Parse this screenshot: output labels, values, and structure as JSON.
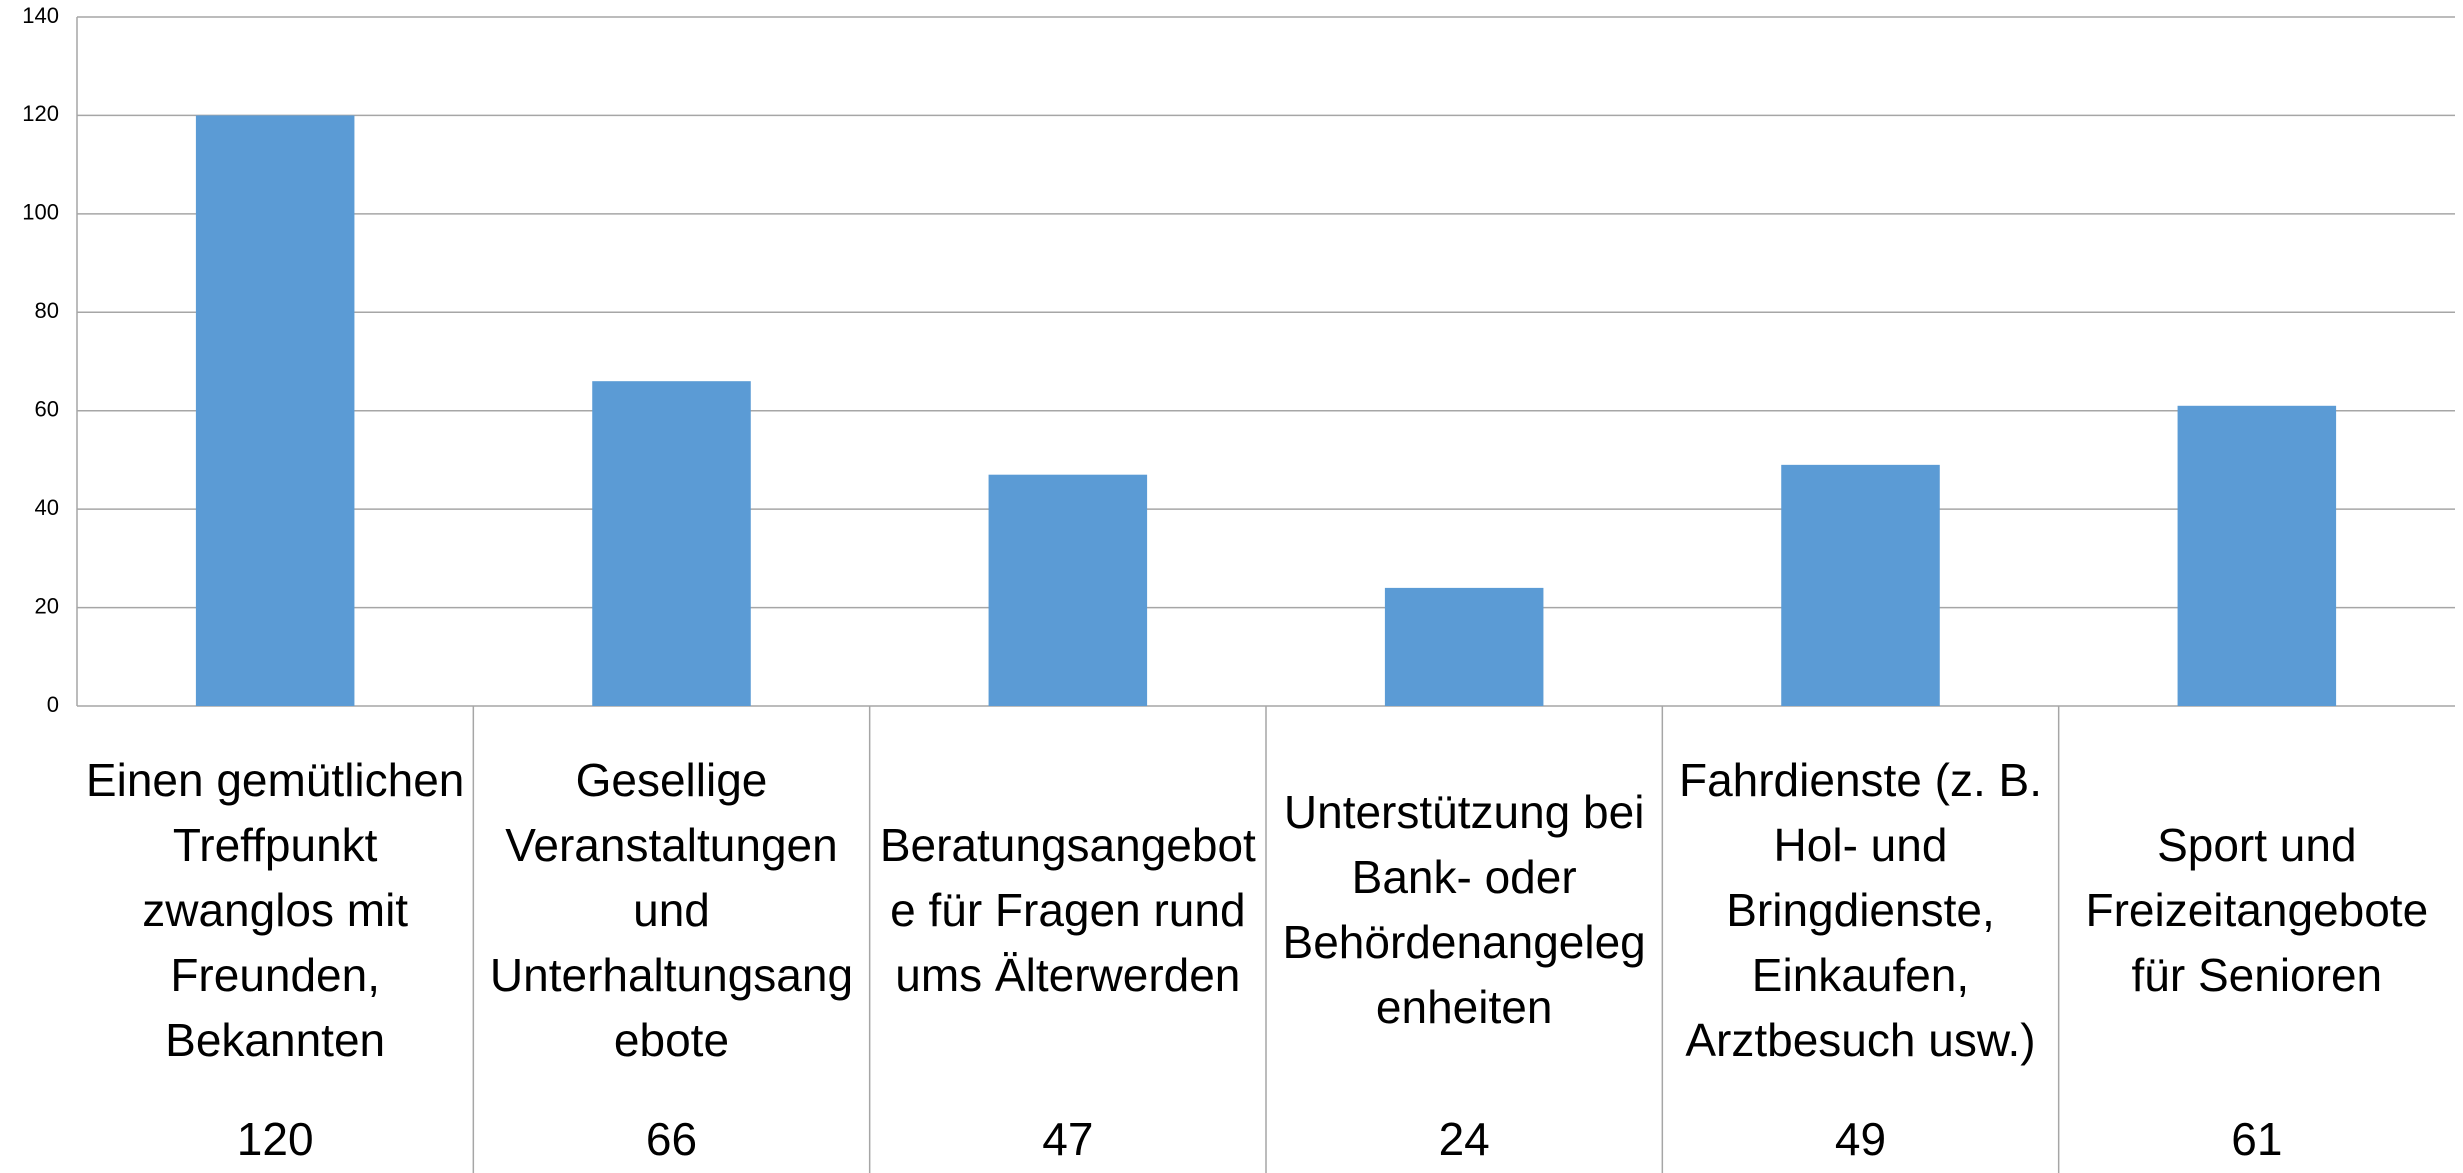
{
  "chart_data": {
    "type": "bar",
    "categories": [
      "Einen gemütlichen Treffpunkt zwanglos mit Freunden, Bekannten",
      "Gesellige Veranstaltungen und Unterhaltungsangebote",
      "Beratungsangebote für Fragen rund ums Älterwerden",
      "Unterstützung bei Bank- oder Behördenangelegenheiten",
      "Fahrdienste (z. B. Hol- und Bringdienste, Einkaufen, Arztbesuch usw.)",
      "Sport und Freizeitangebote für Senioren"
    ],
    "values": [
      120,
      66,
      47,
      24,
      49,
      61
    ],
    "color": "#5b9bd5",
    "ylim": [
      0,
      140
    ],
    "yticks": [
      0,
      20,
      40,
      60,
      80,
      100,
      120,
      140
    ],
    "grid": true
  }
}
